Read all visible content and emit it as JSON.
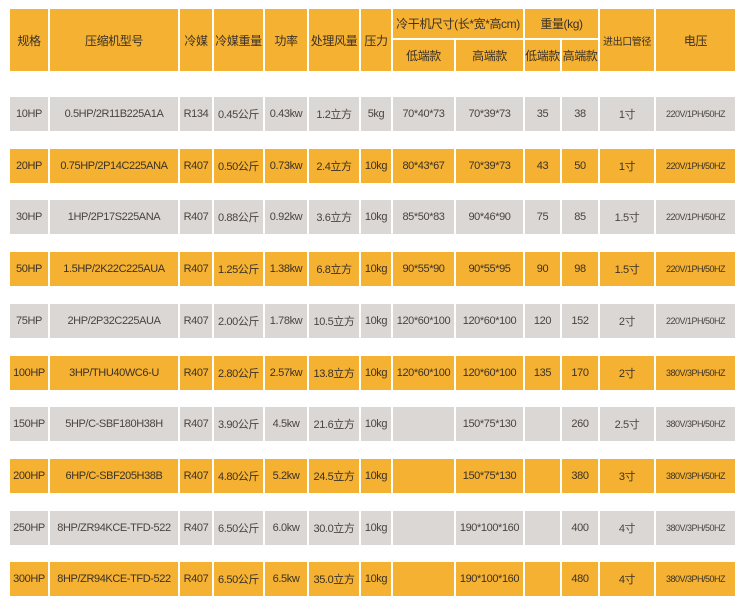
{
  "colors": {
    "orange": "#f5b131",
    "gray": "#dbd7d4",
    "text": "#3a3128"
  },
  "header": {
    "spec": "规格",
    "compressor_model": "压缩机型号",
    "refrigerant": "冷媒",
    "refrigerant_weight": "冷媒重量",
    "power": "功率",
    "air_flow": "处理风量",
    "pressure": "压力",
    "dryer_size": "冷干机尺寸(长*宽*高cm)",
    "weight": "重量(kg)",
    "size_low": "低端款",
    "size_high": "高端款",
    "weight_low": "低端款",
    "weight_high": "高端款",
    "pipe_diameter": "进出口管径",
    "voltage": "电压"
  },
  "rows": [
    {
      "color": "gray",
      "cells": [
        "10HP",
        "0.5HP/2R11B225A1A",
        "R134",
        "0.45公斤",
        "0.43kw",
        "1.2立方",
        "5kg",
        "70*40*73",
        "70*39*73",
        "35",
        "38",
        "1寸",
        "220V/1PH/50HZ"
      ]
    },
    {
      "color": "orange",
      "cells": [
        "20HP",
        "0.75HP/2P14C225ANA",
        "R407",
        "0.50公斤",
        "0.73kw",
        "2.4立方",
        "10kg",
        "80*43*67",
        "70*39*73",
        "43",
        "50",
        "1寸",
        "220V/1PH/50HZ"
      ]
    },
    {
      "color": "gray",
      "cells": [
        "30HP",
        "1HP/2P17S225ANA",
        "R407",
        "0.88公斤",
        "0.92kw",
        "3.6立方",
        "10kg",
        "85*50*83",
        "90*46*90",
        "75",
        "85",
        "1.5寸",
        "220V/1PH/50HZ"
      ]
    },
    {
      "color": "orange",
      "cells": [
        "50HP",
        "1.5HP/2K22C225AUA",
        "R407",
        "1.25公斤",
        "1.38kw",
        "6.8立方",
        "10kg",
        "90*55*90",
        "90*55*95",
        "90",
        "98",
        "1.5寸",
        "220V/1PH/50HZ"
      ]
    },
    {
      "color": "gray",
      "cells": [
        "75HP",
        "2HP/2P32C225AUA",
        "R407",
        "2.00公斤",
        "1.78kw",
        "10.5立方",
        "10kg",
        "120*60*100",
        "120*60*100",
        "120",
        "152",
        "2寸",
        "220V/1PH/50HZ"
      ]
    },
    {
      "color": "orange",
      "cells": [
        "100HP",
        "3HP/THU40WC6-U",
        "R407",
        "2.80公斤",
        "2.57kw",
        "13.8立方",
        "10kg",
        "120*60*100",
        "120*60*100",
        "135",
        "170",
        "2寸",
        "380V/3PH/50HZ"
      ]
    },
    {
      "color": "gray",
      "cells": [
        "150HP",
        "5HP/C-SBF180H38H",
        "R407",
        "3.90公斤",
        "4.5kw",
        "21.6立方",
        "10kg",
        "",
        "150*75*130",
        "",
        "260",
        "2.5寸",
        "380V/3PH/50HZ"
      ]
    },
    {
      "color": "orange",
      "cells": [
        "200HP",
        "6HP/C-SBF205H38B",
        "R407",
        "4.80公斤",
        "5.2kw",
        "24.5立方",
        "10kg",
        "",
        "150*75*130",
        "",
        "380",
        "3寸",
        "380V/3PH/50HZ"
      ]
    },
    {
      "color": "gray",
      "cells": [
        "250HP",
        "8HP/ZR94KCE-TFD-522",
        "R407",
        "6.50公斤",
        "6.0kw",
        "30.0立方",
        "10kg",
        "",
        "190*100*160",
        "",
        "400",
        "4寸",
        "380V/3PH/50HZ"
      ]
    },
    {
      "color": "orange",
      "cells": [
        "300HP",
        "8HP/ZR94KCE-TFD-522",
        "R407",
        "6.50公斤",
        "6.5kw",
        "35.0立方",
        "10kg",
        "",
        "190*100*160",
        "",
        "480",
        "4寸",
        "380V/3PH/50HZ"
      ]
    }
  ]
}
